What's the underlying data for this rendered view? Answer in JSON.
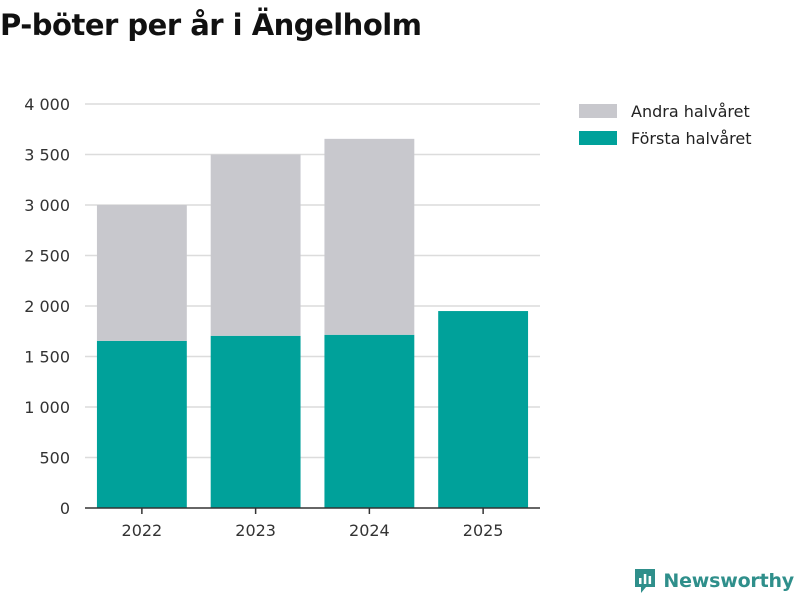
{
  "chart_data": {
    "type": "bar",
    "stacked": true,
    "title": "P-böter per år i Ängelholm",
    "xlabel": "",
    "ylabel": "",
    "categories": [
      "2022",
      "2023",
      "2024",
      "2025"
    ],
    "ylim": [
      0,
      4000
    ],
    "yticks": [
      0,
      500,
      1000,
      1500,
      2000,
      2500,
      3000,
      3500,
      4000
    ],
    "ytick_labels": [
      "0",
      "500",
      "1 000",
      "1 500",
      "2 000",
      "2 500",
      "3 000",
      "3 500",
      "4 000"
    ],
    "grid": "horizontal",
    "legend_position": "top-right",
    "series": [
      {
        "name": "Första halvåret",
        "color": "#00a19a",
        "values": [
          1655,
          1705,
          1715,
          1950
        ]
      },
      {
        "name": "Andra halvåret",
        "color": "#c8c8cd",
        "values": [
          1345,
          1795,
          1940,
          0
        ]
      }
    ],
    "legend_order": [
      "Andra halvåret",
      "Första halvåret"
    ]
  },
  "branding": {
    "name": "Newsworthy",
    "icon": "newsworthy-logo-icon",
    "color": "#2f8f8b"
  }
}
